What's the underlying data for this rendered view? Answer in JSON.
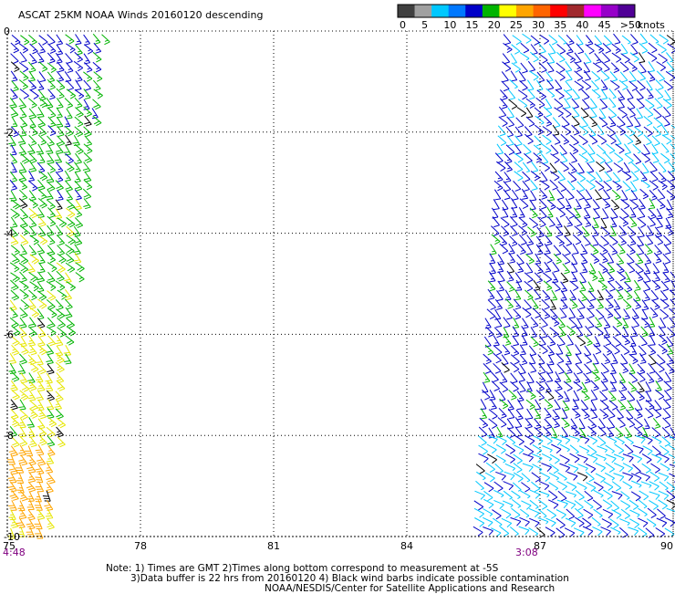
{
  "chart_data": {
    "type": "scatter",
    "title": "ASCAT 25KM NOAA Winds 20160120 descending",
    "xlim": [
      75,
      90
    ],
    "ylim": [
      -10,
      0
    ],
    "x_ticks": [
      "75",
      "78",
      "81",
      "84",
      "87",
      "90"
    ],
    "y_ticks": [
      "0",
      "-2",
      "-4",
      "-6",
      "-8",
      "-10"
    ],
    "grid": true,
    "pass_times": [
      {
        "label": "4:48",
        "x": 75
      },
      {
        "label": "3:08",
        "x": 86.7
      }
    ],
    "legend": {
      "position": "top-right",
      "unit": "knots",
      "labels": [
        "0",
        "5",
        "10",
        "15",
        "20",
        "25",
        "30",
        "35",
        "40",
        "45",
        ">50"
      ],
      "colors": [
        "#404040",
        "#a0a0a0",
        "#00c8ff",
        "#0078ff",
        "#0000c8",
        "#00b400",
        "#ffff00",
        "#ffa500",
        "#ff6400",
        "#ff0000",
        "#a0282d",
        "#ff00ff",
        "#9600c8",
        "#500096"
      ]
    },
    "contamination_color": "#000000",
    "swaths": [
      {
        "name": "west",
        "corners": {
          "top_left": [
            75,
            0
          ],
          "top_right": [
            77.2,
            0
          ],
          "bottom_right": [
            75.9,
            -10
          ],
          "bottom_left": [
            75,
            -10
          ]
        },
        "bands": [
          {
            "lat": [
              0,
              -1.3
            ],
            "speed_kts": 14,
            "direction_deg": 135
          },
          {
            "lat": [
              -1.3,
              -3.2
            ],
            "speed_kts": 17,
            "direction_deg": 140
          },
          {
            "lat": [
              -3.2,
              -6.0
            ],
            "speed_kts": 18,
            "direction_deg": 135
          },
          {
            "lat": [
              -6.0,
              -8.1
            ],
            "speed_kts": 22,
            "direction_deg": 140
          },
          {
            "lat": [
              -8.1,
              -10
            ],
            "speed_kts": 27,
            "direction_deg": 150
          }
        ]
      },
      {
        "name": "east",
        "corners": {
          "top_left": [
            86.1,
            0
          ],
          "top_right": [
            90,
            0
          ],
          "bottom_right": [
            90,
            -10
          ],
          "bottom_left": [
            85.4,
            -10
          ]
        },
        "bands": [
          {
            "lat": [
              0,
              -3.0
            ],
            "speed_kts": 10,
            "direction_deg": 135
          },
          {
            "lat": [
              -3.0,
              -8.0
            ],
            "speed_kts": 13,
            "direction_deg": 140
          },
          {
            "lat": [
              -8.0,
              -10
            ],
            "speed_kts": 9,
            "direction_deg": 120
          }
        ]
      }
    ]
  },
  "notes": {
    "line1": "Note: 1) Times are GMT 2)Times along bottom correspond to measurement at -5S",
    "line2": "3)Data buffer is 22 hrs from 20160120 4) Black wind barbs indicate possible contamination",
    "line3": "NOAA/NESDIS/Center for Satellite Applications and Research"
  }
}
